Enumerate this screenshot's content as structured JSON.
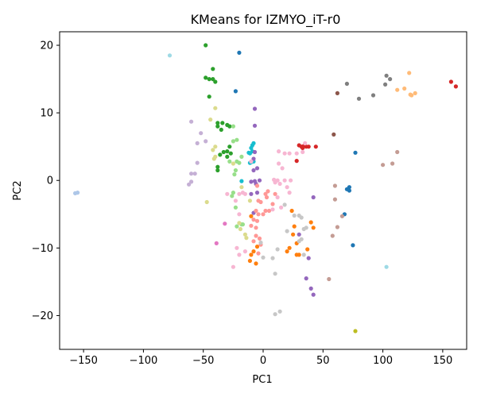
{
  "chart_data": {
    "type": "scatter",
    "title": "KMeans for IZMYO_iT-r0",
    "xlabel": "PC1",
    "ylabel": "PC2",
    "xlim": [
      -170,
      170
    ],
    "ylim": [
      -25,
      22
    ],
    "xticks": [
      -150,
      -100,
      -50,
      0,
      50,
      100,
      150
    ],
    "yticks": [
      -20,
      -10,
      0,
      10,
      20
    ],
    "grid": false,
    "legend": "none",
    "series": [
      {
        "color": "#2ca02c",
        "points": [
          [
            -48,
            20
          ],
          [
            -42,
            16.5
          ],
          [
            -45,
            15
          ],
          [
            -42,
            15
          ],
          [
            -48,
            15.2
          ],
          [
            -40,
            14.6
          ],
          [
            -45,
            12.4
          ],
          [
            -38,
            8.5
          ],
          [
            -34,
            8.5
          ],
          [
            -30,
            8.2
          ],
          [
            -38,
            8
          ],
          [
            -28,
            8
          ],
          [
            -35,
            7.5
          ],
          [
            -38,
            2
          ],
          [
            -38,
            1.5
          ],
          [
            -33,
            4.2
          ],
          [
            -30,
            4.3
          ],
          [
            -28,
            5
          ],
          [
            -30,
            3.5
          ],
          [
            -36,
            3.8
          ],
          [
            -27,
            4
          ]
        ]
      },
      {
        "color": "#98df8a",
        "points": [
          [
            -25,
            8
          ],
          [
            -22,
            6
          ],
          [
            -25,
            5.8
          ],
          [
            -28,
            2.8
          ],
          [
            -23,
            1.5
          ],
          [
            -22,
            2.8
          ],
          [
            -24,
            0.9
          ],
          [
            -18,
            3.5
          ],
          [
            -20,
            2.6
          ],
          [
            -18,
            -6.5
          ],
          [
            -22,
            -6.8
          ],
          [
            -25,
            -1.8
          ],
          [
            -26,
            -2.3
          ],
          [
            -17,
            -6.5
          ],
          [
            -23,
            -4
          ]
        ]
      },
      {
        "color": "#dbdb8d",
        "points": [
          [
            -40,
            10.7
          ],
          [
            -44,
            9
          ],
          [
            -40,
            5
          ],
          [
            -42,
            4.5
          ],
          [
            -40,
            3.5
          ],
          [
            -41,
            3.2
          ],
          [
            -25,
            2.5
          ],
          [
            -20,
            -6.3
          ],
          [
            -19,
            -7.2
          ],
          [
            -15,
            -8
          ],
          [
            -14,
            -8.5
          ],
          [
            -47,
            -3.2
          ],
          [
            -18,
            -1
          ],
          [
            -11,
            -3
          ]
        ]
      },
      {
        "color": "#c5b0d5",
        "points": [
          [
            -60,
            8.7
          ],
          [
            -52,
            7
          ],
          [
            -55,
            5.5
          ],
          [
            -55,
            2.6
          ],
          [
            -60,
            1
          ],
          [
            -57,
            1
          ],
          [
            -60,
            -0.2
          ],
          [
            -62,
            -0.6
          ],
          [
            -48,
            5.8
          ]
        ]
      },
      {
        "color": "#aec7e8",
        "points": [
          [
            -155,
            -1.8
          ],
          [
            -157,
            -1.9
          ]
        ]
      },
      {
        "color": "#9edae5",
        "points": [
          [
            -78,
            18.5
          ],
          [
            103,
            -12.8
          ]
        ]
      },
      {
        "color": "#17becf",
        "points": [
          [
            -8,
            5.5
          ],
          [
            -9,
            5.2
          ],
          [
            -10,
            4.8
          ],
          [
            -9,
            4.3
          ],
          [
            -11,
            4
          ],
          [
            -12,
            4.1
          ],
          [
            -8,
            2.8
          ],
          [
            -10,
            2.7
          ],
          [
            -11,
            2.6
          ],
          [
            -18,
            -0.1
          ]
        ]
      },
      {
        "color": "#1f77b4",
        "points": [
          [
            -20,
            18.9
          ],
          [
            -23,
            13.2
          ],
          [
            77,
            4.1
          ],
          [
            72,
            -1
          ],
          [
            70,
            -1.3
          ],
          [
            72,
            -1.5
          ],
          [
            68,
            -5
          ],
          [
            75,
            -9.6
          ]
        ]
      },
      {
        "color": "#9467bd",
        "points": [
          [
            -7,
            10.6
          ],
          [
            -7,
            8.1
          ],
          [
            -7,
            4.2
          ],
          [
            -8,
            3.2
          ],
          [
            -5,
            1.8
          ],
          [
            -3,
            0
          ],
          [
            -7,
            -0.1
          ],
          [
            -6,
            -0.5
          ],
          [
            -5,
            -1.8
          ],
          [
            -10,
            -2
          ],
          [
            -8,
            -4.8
          ],
          [
            30,
            -8
          ],
          [
            42,
            -2.5
          ],
          [
            36,
            -14.5
          ],
          [
            40,
            -16
          ],
          [
            42,
            -16.9
          ],
          [
            38,
            -11.5
          ],
          [
            -10,
            -0.2
          ],
          [
            -8,
            1.5
          ]
        ]
      },
      {
        "color": "#d62728",
        "points": [
          [
            30,
            5.2
          ],
          [
            32,
            5
          ],
          [
            34,
            5.1
          ],
          [
            36,
            5
          ],
          [
            33,
            4.8
          ],
          [
            38,
            5
          ],
          [
            44,
            5
          ],
          [
            28,
            2.9
          ],
          [
            157,
            14.6
          ],
          [
            161,
            13.9
          ]
        ]
      },
      {
        "color": "#ff9896",
        "points": [
          [
            -5,
            -0.8
          ],
          [
            -6,
            -4.5
          ],
          [
            -4,
            -5
          ],
          [
            -4,
            -3
          ],
          [
            -2,
            -3.2
          ],
          [
            2,
            -2
          ],
          [
            3,
            -2.5
          ],
          [
            -5,
            -6
          ],
          [
            -8,
            -5.8
          ],
          [
            -6,
            -7
          ],
          [
            -10,
            -6.7
          ],
          [
            -6,
            -8.2
          ],
          [
            -3,
            -8.6
          ],
          [
            0,
            -5
          ],
          [
            2,
            -4.5
          ],
          [
            4,
            -1.6
          ],
          [
            5,
            -4.5
          ],
          [
            8,
            -3.5
          ],
          [
            10,
            -2
          ],
          [
            -8,
            -9
          ],
          [
            -2,
            -9.5
          ],
          [
            -4,
            -10.8
          ]
        ]
      },
      {
        "color": "#ff7f0e",
        "points": [
          [
            -10,
            -5.3
          ],
          [
            -5,
            -9.8
          ],
          [
            -8,
            -10.5
          ],
          [
            -10,
            -11
          ],
          [
            -11,
            -11.9
          ],
          [
            -6,
            -12.3
          ],
          [
            20,
            -10.5
          ],
          [
            22,
            -10
          ],
          [
            28,
            -9.3
          ],
          [
            30,
            -11
          ],
          [
            37,
            -10.2
          ],
          [
            42,
            -7
          ],
          [
            40,
            -6.2
          ],
          [
            25,
            -8
          ],
          [
            24,
            -4.5
          ],
          [
            26,
            -6.8
          ],
          [
            28,
            -11
          ]
        ]
      },
      {
        "color": "#f7b6d2",
        "points": [
          [
            -30,
            -2
          ],
          [
            -23,
            -3
          ],
          [
            -20,
            -2
          ],
          [
            -17,
            -1.8
          ],
          [
            -20,
            -5
          ],
          [
            -22,
            -10
          ],
          [
            -25,
            -12.8
          ],
          [
            -20,
            -11
          ],
          [
            -15,
            -10.5
          ],
          [
            15,
            -4
          ],
          [
            8,
            -4.3
          ],
          [
            9,
            0.1
          ],
          [
            10,
            -0.3
          ],
          [
            12,
            0
          ],
          [
            14,
            -0.5
          ],
          [
            12,
            -2.5
          ],
          [
            18,
            0
          ],
          [
            20,
            -1
          ],
          [
            23,
            0
          ],
          [
            22,
            -1.8
          ],
          [
            16,
            1.8
          ],
          [
            18,
            4
          ],
          [
            22,
            4
          ],
          [
            28,
            4
          ],
          [
            13,
            2.5
          ],
          [
            13,
            4.3
          ],
          [
            33,
            4.2
          ],
          [
            35,
            5.5
          ],
          [
            -15,
            -2
          ],
          [
            -10,
            2.8
          ]
        ]
      },
      {
        "color": "#7f7f7f",
        "points": [
          [
            103,
            15.5
          ],
          [
            106,
            15
          ],
          [
            92,
            12.6
          ],
          [
            102,
            14.2
          ],
          [
            70,
            14.3
          ],
          [
            80,
            12.1
          ]
        ]
      },
      {
        "color": "#8c564b",
        "points": [
          [
            59,
            6.8
          ],
          [
            62,
            12.9
          ]
        ]
      },
      {
        "color": "#ffbb78",
        "points": [
          [
            122,
            15.9
          ],
          [
            118,
            13.6
          ],
          [
            112,
            13.4
          ],
          [
            123,
            12.7
          ],
          [
            124,
            12.6
          ],
          [
            127,
            12.9
          ]
        ]
      },
      {
        "color": "#c49c94",
        "points": [
          [
            60,
            -0.8
          ],
          [
            60,
            -2.8
          ],
          [
            66,
            -5.3
          ],
          [
            62,
            -6.9
          ],
          [
            58,
            -8.2
          ],
          [
            55,
            -14.6
          ],
          [
            112,
            4.2
          ],
          [
            100,
            2.3
          ],
          [
            108,
            2.5
          ]
        ]
      },
      {
        "color": "#c7c7c7",
        "points": [
          [
            18,
            -3.6
          ],
          [
            20,
            -7.5
          ],
          [
            26,
            -5.2
          ],
          [
            30,
            -5.2
          ],
          [
            32,
            -5.5
          ],
          [
            34,
            -7.2
          ],
          [
            36,
            -7
          ],
          [
            30,
            -9
          ],
          [
            32,
            -8.7
          ],
          [
            34,
            -11
          ],
          [
            12,
            -10.2
          ],
          [
            8,
            -11.5
          ],
          [
            10,
            -13.8
          ],
          [
            10,
            -19.8
          ],
          [
            14,
            -19.4
          ],
          [
            -2,
            -9.2
          ],
          [
            0,
            -11.4
          ]
        ]
      },
      {
        "color": "#e377c2",
        "points": [
          [
            -32,
            -6.4
          ],
          [
            -39,
            -9.3
          ]
        ]
      },
      {
        "color": "#bcbd22",
        "points": [
          [
            77,
            -22.3
          ]
        ]
      }
    ]
  }
}
